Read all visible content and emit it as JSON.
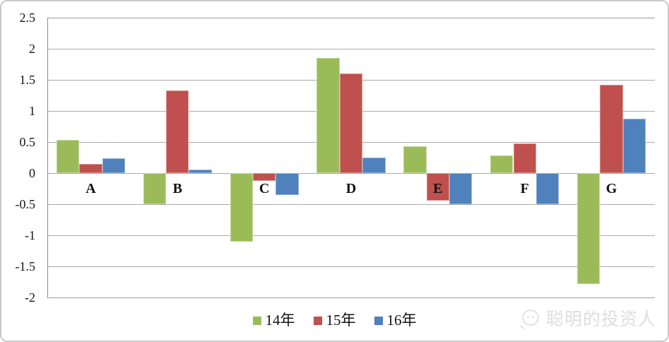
{
  "chart_data": {
    "type": "bar",
    "title": "",
    "xlabel": "",
    "ylabel": "",
    "categories": [
      "A",
      "B",
      "C",
      "D",
      "E",
      "F",
      "G"
    ],
    "series": [
      {
        "name": "14年",
        "color": "#9BBB59",
        "border_color": "#c3d69b",
        "values": [
          0.53,
          -0.5,
          -1.1,
          1.85,
          0.43,
          0.28,
          -1.78
        ]
      },
      {
        "name": "15年",
        "color": "#C0504D",
        "border_color": "#d99694",
        "values": [
          0.15,
          1.33,
          -0.12,
          1.6,
          -0.44,
          0.48,
          1.42
        ]
      },
      {
        "name": "16年",
        "color": "#4F81BD",
        "border_color": "#95b3d7",
        "values": [
          0.24,
          0.06,
          -0.35,
          0.25,
          -0.5,
          -0.5,
          0.87
        ]
      }
    ],
    "ylim": [
      -2,
      2.5
    ],
    "ytick_step": 0.5,
    "yticks": [
      "2.5",
      "2",
      "1.5",
      "1",
      "0.5",
      "0",
      "-0.5",
      "-1",
      "-1.5",
      "-2"
    ],
    "grid": true,
    "legend_position": "bottom"
  },
  "legend": {
    "items": [
      "14年",
      "15年",
      "16年"
    ]
  },
  "watermark": {
    "text": "聪明的投资人"
  },
  "colors": {
    "gridline": "#ababab",
    "axis": "#8c8c8c",
    "watermark_text": "#dedede",
    "frame_border": "#c9c9c9"
  }
}
